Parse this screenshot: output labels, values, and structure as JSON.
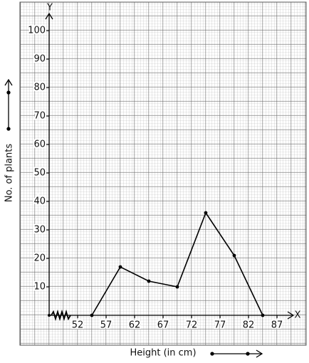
{
  "chart_data": {
    "type": "line",
    "x_label": "Height (in cm)",
    "y_label": "No. of plants",
    "x_axis_name": "X",
    "y_axis_name": "Y",
    "x": [
      54.5,
      59.5,
      64.5,
      69.5,
      74.5,
      79.5,
      84.5
    ],
    "values": [
      0,
      17,
      12,
      10,
      36,
      21,
      0
    ],
    "color": "#000000",
    "xlim": [
      47,
      90
    ],
    "ylim": [
      0,
      105
    ],
    "xticks": [
      52,
      57,
      62,
      67,
      72,
      77,
      82,
      87
    ],
    "yticks": [
      10,
      20,
      30,
      40,
      50,
      60,
      70,
      80,
      90,
      100
    ],
    "grid": true
  }
}
